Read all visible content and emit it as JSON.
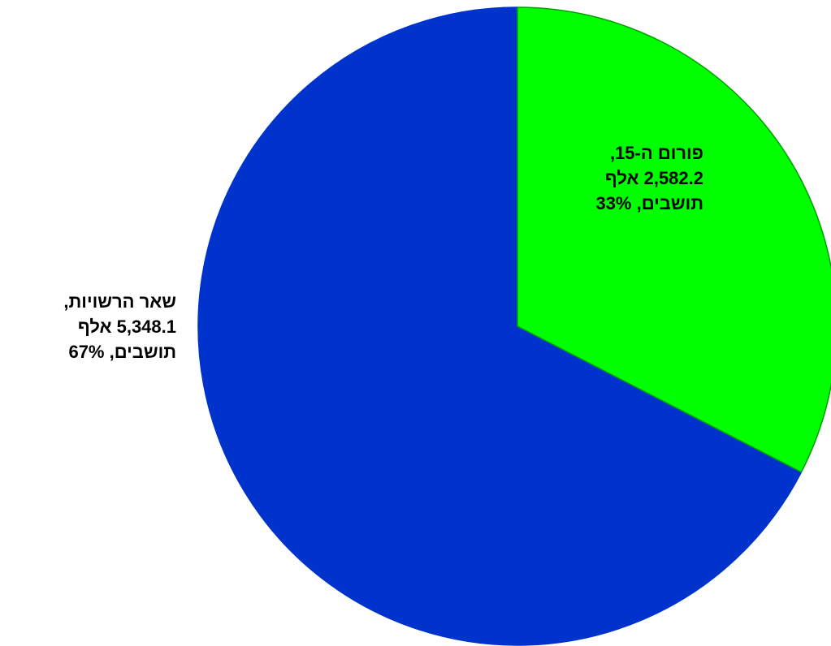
{
  "chart_data": {
    "type": "pie",
    "title": "",
    "start_angle_deg": 0,
    "direction": "clockwise",
    "slices": [
      {
        "label_lines": [
          "פורום ה-15,",
          "2,582.2 אלף",
          "תושבים, 33%"
        ],
        "value": 2582.2,
        "percent": 33,
        "color": "#00ff00",
        "stroke": "#00a000"
      },
      {
        "label_lines": [
          "שאר   הרשויות,",
          "5,348.1 אלף",
          "תושבים, 67%"
        ],
        "value": 5348.1,
        "percent": 67,
        "color": "#0033cc",
        "stroke": "#0033cc"
      }
    ]
  }
}
